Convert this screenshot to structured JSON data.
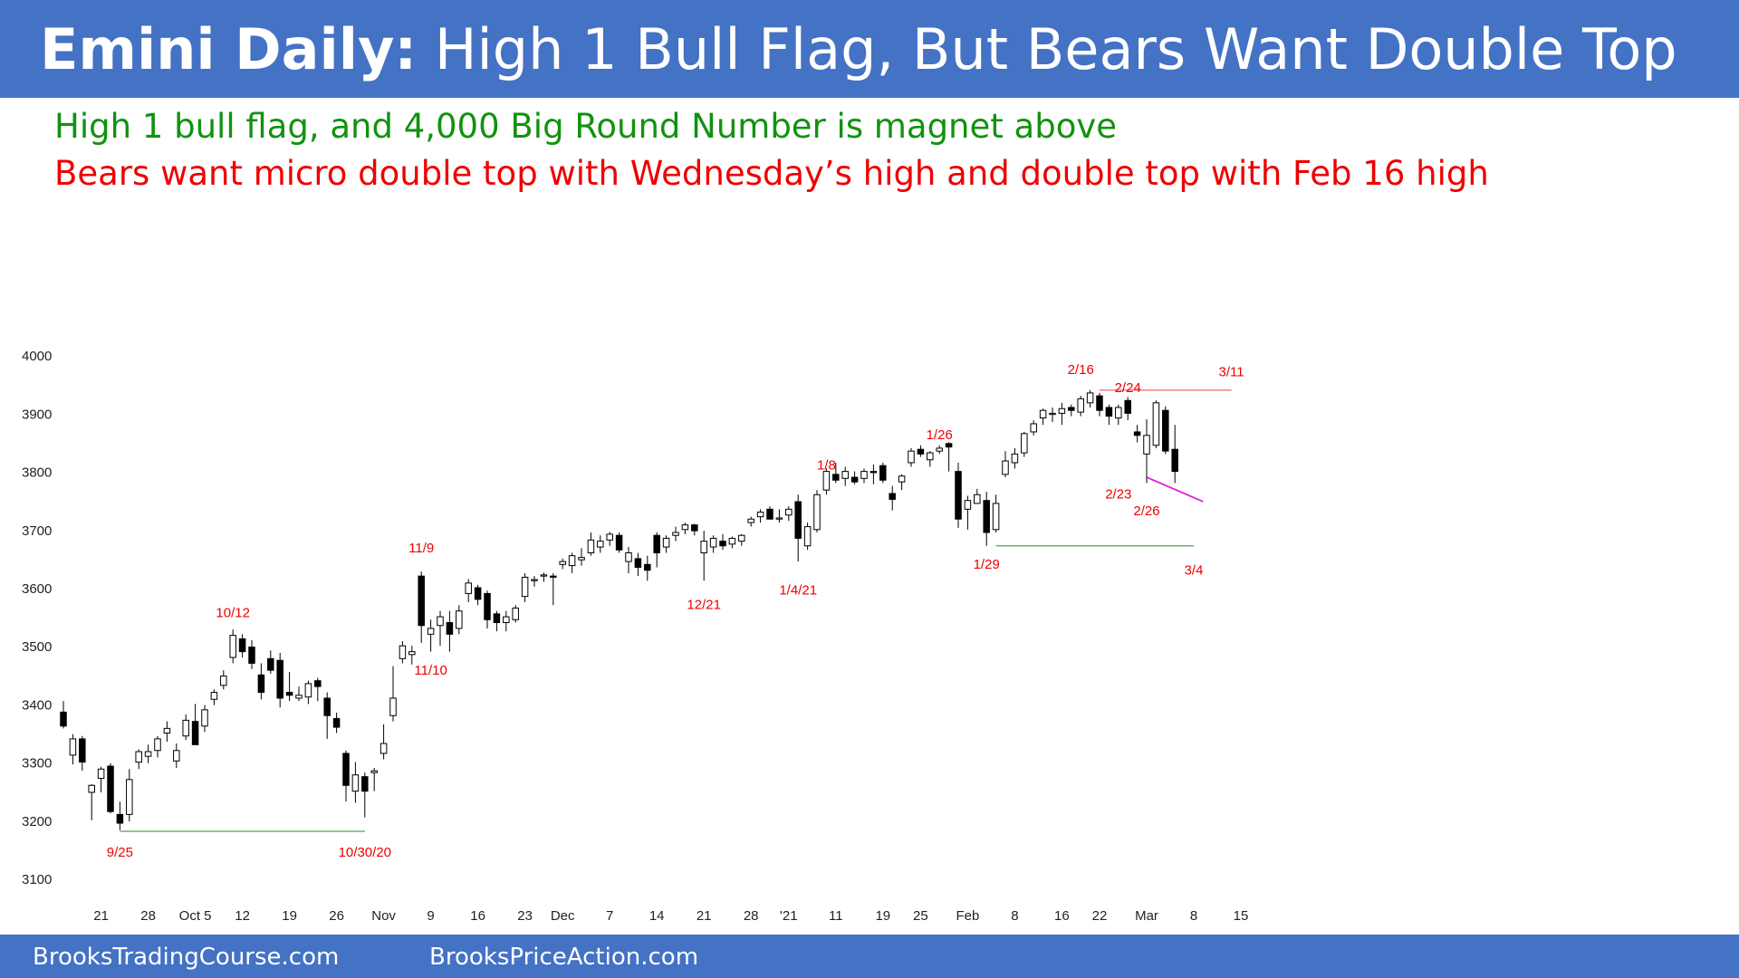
{
  "header": {
    "title_bold": "Emini Daily:",
    "title_rest": "High 1 Bull Flag, But Bears Want Double Top",
    "subtitle_bull": "High 1 bull flag, and 4,000 Big Round Number is magnet above",
    "subtitle_bear": "Bears want micro double top with Wednesday’s high and double top with Feb 16 high"
  },
  "footer": {
    "site1": "BrooksTradingCourse.com",
    "site2": "BrooksPriceAction.com"
  },
  "colors": {
    "banner": "#4472c4",
    "bull_text": "#12920f",
    "bear_text": "#ee0000",
    "resistance_line": "#f08080",
    "support_line": "#70b070",
    "wedge_line": "#e020e0"
  },
  "chart_data": {
    "type": "candlestick",
    "title": "",
    "xlabel": "",
    "ylabel": "",
    "ylim": [
      3100,
      4000
    ],
    "yticks": [
      3100,
      3200,
      3300,
      3400,
      3500,
      3600,
      3700,
      3800,
      3900,
      4000
    ],
    "grid": false,
    "x_tick_labels": [
      {
        "label": "21",
        "bar": 4
      },
      {
        "label": "28",
        "bar": 9
      },
      {
        "label": "Oct 5",
        "bar": 14
      },
      {
        "label": "12",
        "bar": 19
      },
      {
        "label": "19",
        "bar": 24
      },
      {
        "label": "26",
        "bar": 29
      },
      {
        "label": "Nov",
        "bar": 34
      },
      {
        "label": "9",
        "bar": 39
      },
      {
        "label": "16",
        "bar": 44
      },
      {
        "label": "23",
        "bar": 49
      },
      {
        "label": "Dec",
        "bar": 53
      },
      {
        "label": "7",
        "bar": 58
      },
      {
        "label": "14",
        "bar": 63
      },
      {
        "label": "21",
        "bar": 68
      },
      {
        "label": "28",
        "bar": 73
      },
      {
        "label": "'21",
        "bar": 77
      },
      {
        "label": "11",
        "bar": 82
      },
      {
        "label": "19",
        "bar": 87
      },
      {
        "label": "25",
        "bar": 91
      },
      {
        "label": "Feb",
        "bar": 96
      },
      {
        "label": "8",
        "bar": 101
      },
      {
        "label": "16",
        "bar": 106
      },
      {
        "label": "22",
        "bar": 110
      },
      {
        "label": "Mar",
        "bar": 115
      },
      {
        "label": "8",
        "bar": 120
      },
      {
        "label": "15",
        "bar": 125
      }
    ],
    "candles": [
      {
        "o": 3386,
        "h": 3405,
        "l": 3358,
        "c": 3362
      },
      {
        "o": 3312,
        "h": 3348,
        "l": 3296,
        "c": 3340
      },
      {
        "o": 3340,
        "h": 3345,
        "l": 3285,
        "c": 3300
      },
      {
        "o": 3248,
        "h": 3262,
        "l": 3200,
        "c": 3260
      },
      {
        "o": 3272,
        "h": 3292,
        "l": 3248,
        "c": 3288
      },
      {
        "o": 3293,
        "h": 3298,
        "l": 3212,
        "c": 3215
      },
      {
        "o": 3210,
        "h": 3232,
        "l": 3183,
        "c": 3195
      },
      {
        "o": 3210,
        "h": 3288,
        "l": 3198,
        "c": 3270
      },
      {
        "o": 3300,
        "h": 3322,
        "l": 3288,
        "c": 3318
      },
      {
        "o": 3310,
        "h": 3330,
        "l": 3298,
        "c": 3318
      },
      {
        "o": 3320,
        "h": 3345,
        "l": 3308,
        "c": 3340
      },
      {
        "o": 3350,
        "h": 3370,
        "l": 3335,
        "c": 3358
      },
      {
        "o": 3302,
        "h": 3332,
        "l": 3290,
        "c": 3320
      },
      {
        "o": 3345,
        "h": 3382,
        "l": 3338,
        "c": 3372
      },
      {
        "o": 3370,
        "h": 3400,
        "l": 3332,
        "c": 3330
      },
      {
        "o": 3362,
        "h": 3398,
        "l": 3352,
        "c": 3390
      },
      {
        "o": 3408,
        "h": 3425,
        "l": 3398,
        "c": 3420
      },
      {
        "o": 3432,
        "h": 3458,
        "l": 3425,
        "c": 3448
      },
      {
        "o": 3480,
        "h": 3528,
        "l": 3470,
        "c": 3518
      },
      {
        "o": 3512,
        "h": 3520,
        "l": 3480,
        "c": 3490
      },
      {
        "o": 3498,
        "h": 3510,
        "l": 3460,
        "c": 3470
      },
      {
        "o": 3450,
        "h": 3470,
        "l": 3408,
        "c": 3420
      },
      {
        "o": 3478,
        "h": 3492,
        "l": 3452,
        "c": 3458
      },
      {
        "o": 3475,
        "h": 3488,
        "l": 3394,
        "c": 3410
      },
      {
        "o": 3420,
        "h": 3455,
        "l": 3405,
        "c": 3415
      },
      {
        "o": 3410,
        "h": 3430,
        "l": 3405,
        "c": 3415
      },
      {
        "o": 3412,
        "h": 3440,
        "l": 3400,
        "c": 3435
      },
      {
        "o": 3440,
        "h": 3445,
        "l": 3405,
        "c": 3430
      },
      {
        "o": 3410,
        "h": 3420,
        "l": 3340,
        "c": 3380
      },
      {
        "o": 3375,
        "h": 3385,
        "l": 3350,
        "c": 3360
      },
      {
        "o": 3315,
        "h": 3320,
        "l": 3232,
        "c": 3260
      },
      {
        "o": 3250,
        "h": 3300,
        "l": 3230,
        "c": 3278
      },
      {
        "o": 3275,
        "h": 3282,
        "l": 3205,
        "c": 3250
      },
      {
        "o": 3282,
        "h": 3290,
        "l": 3250,
        "c": 3285
      },
      {
        "o": 3315,
        "h": 3365,
        "l": 3305,
        "c": 3332
      },
      {
        "o": 3380,
        "h": 3465,
        "l": 3370,
        "c": 3410
      },
      {
        "o": 3478,
        "h": 3508,
        "l": 3470,
        "c": 3500
      },
      {
        "o": 3485,
        "h": 3500,
        "l": 3468,
        "c": 3490
      },
      {
        "o": 3620,
        "h": 3628,
        "l": 3505,
        "c": 3535
      },
      {
        "o": 3520,
        "h": 3545,
        "l": 3490,
        "c": 3530
      },
      {
        "o": 3535,
        "h": 3560,
        "l": 3500,
        "c": 3550
      },
      {
        "o": 3540,
        "h": 3560,
        "l": 3490,
        "c": 3520
      },
      {
        "o": 3530,
        "h": 3570,
        "l": 3520,
        "c": 3560
      },
      {
        "o": 3590,
        "h": 3615,
        "l": 3575,
        "c": 3608
      },
      {
        "o": 3600,
        "h": 3605,
        "l": 3570,
        "c": 3580
      },
      {
        "o": 3590,
        "h": 3595,
        "l": 3530,
        "c": 3545
      },
      {
        "o": 3555,
        "h": 3560,
        "l": 3525,
        "c": 3540
      },
      {
        "o": 3540,
        "h": 3560,
        "l": 3525,
        "c": 3550
      },
      {
        "o": 3545,
        "h": 3570,
        "l": 3540,
        "c": 3565
      },
      {
        "o": 3585,
        "h": 3625,
        "l": 3575,
        "c": 3618
      },
      {
        "o": 3612,
        "h": 3620,
        "l": 3602,
        "c": 3614
      },
      {
        "o": 3620,
        "h": 3626,
        "l": 3610,
        "c": 3622
      },
      {
        "o": 3620,
        "h": 3625,
        "l": 3570,
        "c": 3618
      },
      {
        "o": 3640,
        "h": 3650,
        "l": 3632,
        "c": 3645
      },
      {
        "o": 3638,
        "h": 3660,
        "l": 3625,
        "c": 3655
      },
      {
        "o": 3648,
        "h": 3668,
        "l": 3638,
        "c": 3652
      },
      {
        "o": 3660,
        "h": 3695,
        "l": 3655,
        "c": 3682
      },
      {
        "o": 3670,
        "h": 3690,
        "l": 3660,
        "c": 3680
      },
      {
        "o": 3682,
        "h": 3696,
        "l": 3672,
        "c": 3692
      },
      {
        "o": 3690,
        "h": 3695,
        "l": 3660,
        "c": 3665
      },
      {
        "o": 3645,
        "h": 3670,
        "l": 3625,
        "c": 3660
      },
      {
        "o": 3650,
        "h": 3660,
        "l": 3620,
        "c": 3635
      },
      {
        "o": 3640,
        "h": 3655,
        "l": 3612,
        "c": 3630
      },
      {
        "o": 3690,
        "h": 3695,
        "l": 3635,
        "c": 3660
      },
      {
        "o": 3670,
        "h": 3690,
        "l": 3660,
        "c": 3685
      },
      {
        "o": 3690,
        "h": 3705,
        "l": 3680,
        "c": 3695
      },
      {
        "o": 3700,
        "h": 3712,
        "l": 3692,
        "c": 3708
      },
      {
        "o": 3708,
        "h": 3710,
        "l": 3690,
        "c": 3698
      },
      {
        "o": 3660,
        "h": 3698,
        "l": 3612,
        "c": 3680
      },
      {
        "o": 3670,
        "h": 3690,
        "l": 3660,
        "c": 3685
      },
      {
        "o": 3680,
        "h": 3692,
        "l": 3665,
        "c": 3672
      },
      {
        "o": 3675,
        "h": 3688,
        "l": 3668,
        "c": 3685
      },
      {
        "o": 3680,
        "h": 3692,
        "l": 3672,
        "c": 3690
      },
      {
        "o": 3712,
        "h": 3722,
        "l": 3705,
        "c": 3718
      },
      {
        "o": 3722,
        "h": 3735,
        "l": 3712,
        "c": 3730
      },
      {
        "o": 3735,
        "h": 3740,
        "l": 3718,
        "c": 3718
      },
      {
        "o": 3718,
        "h": 3735,
        "l": 3712,
        "c": 3720
      },
      {
        "o": 3725,
        "h": 3740,
        "l": 3715,
        "c": 3735
      },
      {
        "o": 3748,
        "h": 3760,
        "l": 3645,
        "c": 3685
      },
      {
        "o": 3672,
        "h": 3712,
        "l": 3665,
        "c": 3705
      },
      {
        "o": 3700,
        "h": 3768,
        "l": 3695,
        "c": 3760
      },
      {
        "o": 3768,
        "h": 3805,
        "l": 3760,
        "c": 3800
      },
      {
        "o": 3795,
        "h": 3815,
        "l": 3780,
        "c": 3785
      },
      {
        "o": 3788,
        "h": 3808,
        "l": 3775,
        "c": 3800
      },
      {
        "o": 3790,
        "h": 3800,
        "l": 3778,
        "c": 3782
      },
      {
        "o": 3788,
        "h": 3805,
        "l": 3780,
        "c": 3800
      },
      {
        "o": 3800,
        "h": 3812,
        "l": 3778,
        "c": 3798
      },
      {
        "o": 3810,
        "h": 3815,
        "l": 3780,
        "c": 3785
      },
      {
        "o": 3762,
        "h": 3775,
        "l": 3733,
        "c": 3752
      },
      {
        "o": 3782,
        "h": 3795,
        "l": 3768,
        "c": 3792
      },
      {
        "o": 3815,
        "h": 3840,
        "l": 3808,
        "c": 3835
      },
      {
        "o": 3838,
        "h": 3845,
        "l": 3825,
        "c": 3830
      },
      {
        "o": 3820,
        "h": 3835,
        "l": 3808,
        "c": 3832
      },
      {
        "o": 3835,
        "h": 3845,
        "l": 3830,
        "c": 3840
      },
      {
        "o": 3848,
        "h": 3850,
        "l": 3800,
        "c": 3842
      },
      {
        "o": 3800,
        "h": 3815,
        "l": 3703,
        "c": 3718
      },
      {
        "o": 3735,
        "h": 3758,
        "l": 3700,
        "c": 3750
      },
      {
        "o": 3745,
        "h": 3770,
        "l": 3745,
        "c": 3760
      },
      {
        "o": 3750,
        "h": 3765,
        "l": 3672,
        "c": 3695
      },
      {
        "o": 3700,
        "h": 3760,
        "l": 3695,
        "c": 3745
      },
      {
        "o": 3795,
        "h": 3835,
        "l": 3790,
        "c": 3818
      },
      {
        "o": 3815,
        "h": 3840,
        "l": 3805,
        "c": 3830
      },
      {
        "o": 3832,
        "h": 3868,
        "l": 3825,
        "c": 3865
      },
      {
        "o": 3868,
        "h": 3888,
        "l": 3862,
        "c": 3882
      },
      {
        "o": 3892,
        "h": 3908,
        "l": 3880,
        "c": 3905
      },
      {
        "o": 3898,
        "h": 3910,
        "l": 3885,
        "c": 3900
      },
      {
        "o": 3900,
        "h": 3918,
        "l": 3880,
        "c": 3908
      },
      {
        "o": 3910,
        "h": 3915,
        "l": 3895,
        "c": 3905
      },
      {
        "o": 3902,
        "h": 3930,
        "l": 3895,
        "c": 3925
      },
      {
        "o": 3918,
        "h": 3940,
        "l": 3910,
        "c": 3935
      },
      {
        "o": 3930,
        "h": 3935,
        "l": 3895,
        "c": 3905
      },
      {
        "o": 3910,
        "h": 3915,
        "l": 3880,
        "c": 3895
      },
      {
        "o": 3892,
        "h": 3915,
        "l": 3880,
        "c": 3910
      },
      {
        "o": 3922,
        "h": 3928,
        "l": 3888,
        "c": 3900
      },
      {
        "o": 3868,
        "h": 3880,
        "l": 3850,
        "c": 3862
      },
      {
        "o": 3830,
        "h": 3890,
        "l": 3780,
        "c": 3862
      },
      {
        "o": 3845,
        "h": 3922,
        "l": 3840,
        "c": 3918
      },
      {
        "o": 3905,
        "h": 3912,
        "l": 3830,
        "c": 3835
      },
      {
        "o": 3838,
        "h": 3880,
        "l": 3780,
        "c": 3800
      }
    ],
    "annotations": [
      {
        "text": "9/25",
        "bar": 6,
        "y": 3147
      },
      {
        "text": "10/12",
        "bar": 18,
        "y": 3559
      },
      {
        "text": "10/30/20",
        "bar": 32,
        "y": 3147
      },
      {
        "text": "11/9",
        "bar": 38,
        "y": 3670
      },
      {
        "text": "11/10",
        "bar": 39,
        "y": 3460
      },
      {
        "text": "12/21",
        "bar": 68,
        "y": 3573
      },
      {
        "text": "1/4/21",
        "bar": 78,
        "y": 3598
      },
      {
        "text": "1/8",
        "bar": 81,
        "y": 3813
      },
      {
        "text": "1/26",
        "bar": 93,
        "y": 3865
      },
      {
        "text": "1/29",
        "bar": 98,
        "y": 3642
      },
      {
        "text": "2/16",
        "bar": 108,
        "y": 3977
      },
      {
        "text": "2/24",
        "bar": 113,
        "y": 3946
      },
      {
        "text": "2/23",
        "bar": 112,
        "y": 3763
      },
      {
        "text": "2/26",
        "bar": 115,
        "y": 3734
      },
      {
        "text": "3/4",
        "bar": 120,
        "y": 3632
      },
      {
        "text": "3/11",
        "bar": 124,
        "y": 3973
      }
    ]
  }
}
